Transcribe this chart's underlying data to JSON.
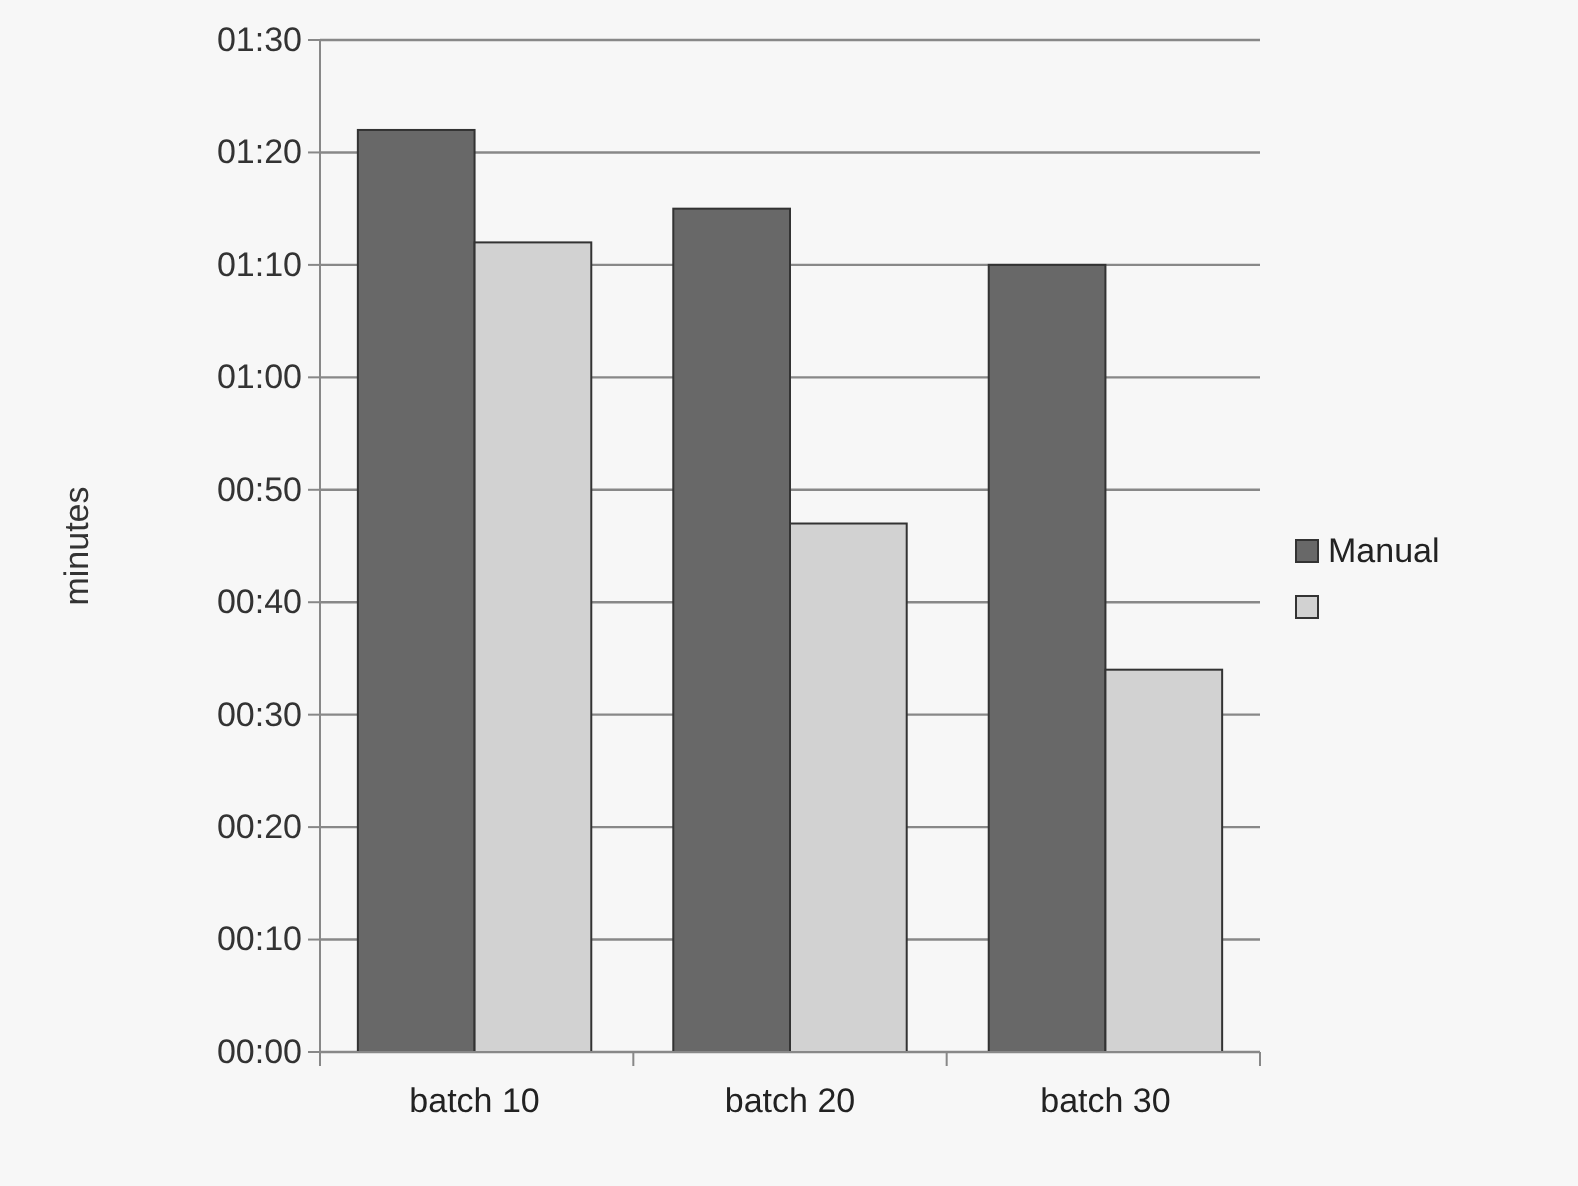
{
  "chart_data": {
    "type": "bar",
    "ylabel": "minutes",
    "categories": [
      "batch 10",
      "batch 20",
      "batch 30"
    ],
    "series": [
      {
        "name": "Manual",
        "color": "#686868",
        "values": [
          82,
          75,
          70
        ]
      },
      {
        "color": "#d2d2d2",
        "values": [
          72,
          47,
          34
        ]
      }
    ],
    "ylim": [
      0,
      90
    ],
    "yticks": [
      {
        "value": 0,
        "label": "00:00"
      },
      {
        "value": 10,
        "label": "00:10"
      },
      {
        "value": 20,
        "label": "00:20"
      },
      {
        "value": 30,
        "label": "00:30"
      },
      {
        "value": 40,
        "label": "00:40"
      },
      {
        "value": 50,
        "label": "00:50"
      },
      {
        "value": 60,
        "label": "01:00"
      },
      {
        "value": 70,
        "label": "01:10"
      },
      {
        "value": 80,
        "label": "01:20"
      },
      {
        "value": 90,
        "label": "01:30"
      }
    ],
    "grid": "y",
    "legend": "right"
  }
}
